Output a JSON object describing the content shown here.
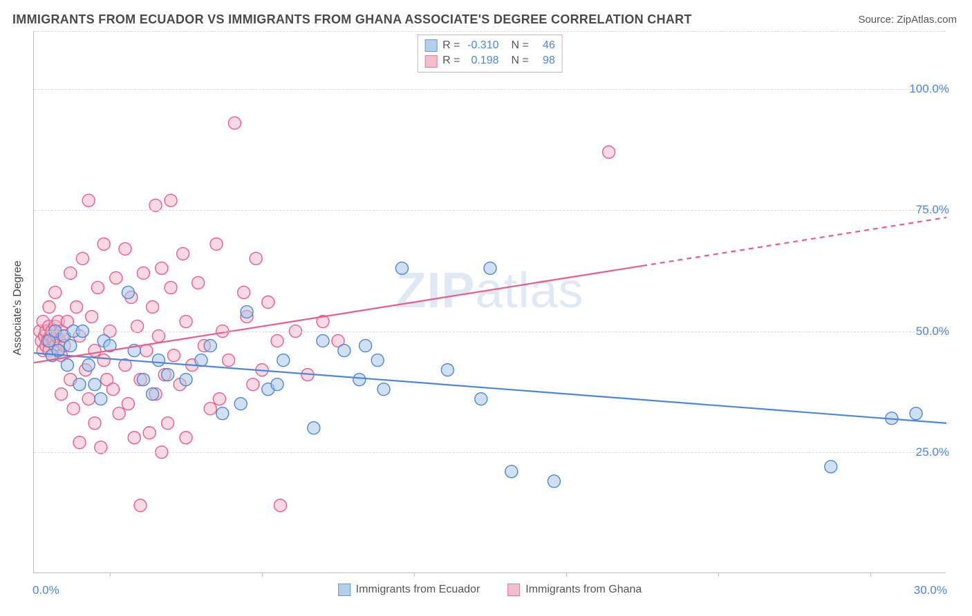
{
  "chart": {
    "type": "scatter-with-regression",
    "title": "IMMIGRANTS FROM ECUADOR VS IMMIGRANTS FROM GHANA ASSOCIATE'S DEGREE CORRELATION CHART",
    "source_label": "Source: ZipAtlas.com",
    "watermark": "ZIPatlas",
    "y_axis_label": "Associate's Degree",
    "xlim": [
      0,
      30
    ],
    "ylim": [
      0,
      112
    ],
    "x_start_label": "0.0%",
    "x_end_label": "30.0%",
    "x_ticks_at": [
      2.5,
      7.5,
      12.5,
      17.5,
      22.5,
      27.5
    ],
    "y_gridlines": [
      {
        "val": 25,
        "label": "25.0%"
      },
      {
        "val": 50,
        "label": "50.0%"
      },
      {
        "val": 75,
        "label": "75.0%"
      },
      {
        "val": 100,
        "label": "100.0%"
      },
      {
        "val": 112,
        "label": ""
      }
    ],
    "background_color": "#ffffff",
    "grid_color": "#d8d8d8",
    "axis_color": "#bdbdbd",
    "label_color": "#4d86d6",
    "title_color": "#4a4a4a",
    "marker_radius": 9,
    "marker_stroke_width": 1.4,
    "line_width": 2.2,
    "series": [
      {
        "name": "Immigrants from Ecuador",
        "label": "Immigrants from Ecuador",
        "fill_color": "#a8c7ea",
        "stroke_color": "#4d86d6",
        "fill_opacity": 0.55,
        "R": "-0.310",
        "N": "46",
        "regression": {
          "x1": 0,
          "y1": 45.5,
          "x2": 30,
          "y2": 31,
          "dashed_from_x": null
        },
        "points": [
          [
            0.5,
            48
          ],
          [
            0.6,
            45
          ],
          [
            0.7,
            50
          ],
          [
            0.8,
            46
          ],
          [
            1.0,
            49
          ],
          [
            1.1,
            43
          ],
          [
            1.2,
            47
          ],
          [
            1.3,
            50
          ],
          [
            1.5,
            39
          ],
          [
            1.6,
            50
          ],
          [
            1.8,
            43
          ],
          [
            2.0,
            39
          ],
          [
            2.2,
            36
          ],
          [
            2.3,
            48
          ],
          [
            2.5,
            47
          ],
          [
            3.1,
            58
          ],
          [
            3.3,
            46
          ],
          [
            3.6,
            40
          ],
          [
            3.9,
            37
          ],
          [
            4.1,
            44
          ],
          [
            4.4,
            41
          ],
          [
            5.0,
            40
          ],
          [
            5.5,
            44
          ],
          [
            5.8,
            47
          ],
          [
            6.2,
            33
          ],
          [
            6.8,
            35
          ],
          [
            7.0,
            54
          ],
          [
            7.7,
            38
          ],
          [
            8.0,
            39
          ],
          [
            8.2,
            44
          ],
          [
            9.2,
            30
          ],
          [
            9.5,
            48
          ],
          [
            10.2,
            46
          ],
          [
            10.7,
            40
          ],
          [
            10.9,
            47
          ],
          [
            11.3,
            44
          ],
          [
            11.5,
            38
          ],
          [
            12.1,
            63
          ],
          [
            13.6,
            42
          ],
          [
            14.7,
            36
          ],
          [
            15.0,
            63
          ],
          [
            15.7,
            21
          ],
          [
            17.1,
            19
          ],
          [
            26.2,
            22
          ],
          [
            28.2,
            32
          ],
          [
            29.0,
            33
          ]
        ]
      },
      {
        "name": "Immigrants from Ghana",
        "label": "Immigrants from Ghana",
        "fill_color": "#f2b3c4",
        "stroke_color": "#e85d8b",
        "fill_opacity": 0.5,
        "R": "0.198",
        "N": "98",
        "regression": {
          "x1": 0,
          "y1": 43.5,
          "x2": 30,
          "y2": 73.5,
          "dashed_from_x": 20
        },
        "points": [
          [
            0.2,
            50
          ],
          [
            0.25,
            48
          ],
          [
            0.3,
            46
          ],
          [
            0.3,
            52
          ],
          [
            0.35,
            49
          ],
          [
            0.4,
            47
          ],
          [
            0.4,
            50
          ],
          [
            0.45,
            48
          ],
          [
            0.5,
            46
          ],
          [
            0.5,
            51
          ],
          [
            0.55,
            49
          ],
          [
            0.6,
            45
          ],
          [
            0.6,
            50
          ],
          [
            0.65,
            48
          ],
          [
            0.7,
            47
          ],
          [
            0.7,
            51
          ],
          [
            0.75,
            49
          ],
          [
            0.8,
            46
          ],
          [
            0.8,
            52
          ],
          [
            0.85,
            48
          ],
          [
            0.9,
            50
          ],
          [
            0.9,
            45
          ],
          [
            0.95,
            49
          ],
          [
            1.0,
            47
          ],
          [
            0.5,
            55
          ],
          [
            0.7,
            58
          ],
          [
            0.9,
            37
          ],
          [
            1.1,
            52
          ],
          [
            1.2,
            40
          ],
          [
            1.2,
            62
          ],
          [
            1.3,
            34
          ],
          [
            1.4,
            55
          ],
          [
            1.5,
            27
          ],
          [
            1.5,
            49
          ],
          [
            1.6,
            65
          ],
          [
            1.7,
            42
          ],
          [
            1.8,
            36
          ],
          [
            1.8,
            77
          ],
          [
            1.9,
            53
          ],
          [
            2.0,
            46
          ],
          [
            2.0,
            31
          ],
          [
            2.1,
            59
          ],
          [
            2.2,
            26
          ],
          [
            2.3,
            68
          ],
          [
            2.3,
            44
          ],
          [
            2.4,
            40
          ],
          [
            2.5,
            50
          ],
          [
            2.6,
            38
          ],
          [
            2.7,
            61
          ],
          [
            2.8,
            33
          ],
          [
            3.0,
            67
          ],
          [
            3.0,
            43
          ],
          [
            3.1,
            35
          ],
          [
            3.2,
            57
          ],
          [
            3.3,
            28
          ],
          [
            3.4,
            51
          ],
          [
            3.5,
            40
          ],
          [
            3.5,
            14
          ],
          [
            3.6,
            62
          ],
          [
            3.7,
            46
          ],
          [
            3.8,
            29
          ],
          [
            3.9,
            55
          ],
          [
            4.0,
            37
          ],
          [
            4.0,
            76
          ],
          [
            4.1,
            49
          ],
          [
            4.2,
            63
          ],
          [
            4.3,
            41
          ],
          [
            4.4,
            31
          ],
          [
            4.5,
            59
          ],
          [
            4.5,
            77
          ],
          [
            4.6,
            45
          ],
          [
            4.8,
            39
          ],
          [
            4.9,
            66
          ],
          [
            5.0,
            52
          ],
          [
            5.0,
            28
          ],
          [
            5.2,
            43
          ],
          [
            5.4,
            60
          ],
          [
            5.6,
            47
          ],
          [
            5.8,
            34
          ],
          [
            6.0,
            68
          ],
          [
            6.1,
            36
          ],
          [
            6.2,
            50
          ],
          [
            6.4,
            44
          ],
          [
            6.6,
            93
          ],
          [
            6.9,
            58
          ],
          [
            7.0,
            53
          ],
          [
            7.2,
            39
          ],
          [
            7.3,
            65
          ],
          [
            7.5,
            42
          ],
          [
            7.7,
            56
          ],
          [
            8.0,
            48
          ],
          [
            8.1,
            14
          ],
          [
            8.6,
            50
          ],
          [
            9.0,
            41
          ],
          [
            9.5,
            52
          ],
          [
            10.0,
            48
          ],
          [
            18.9,
            87
          ],
          [
            4.2,
            25
          ]
        ]
      }
    ]
  }
}
